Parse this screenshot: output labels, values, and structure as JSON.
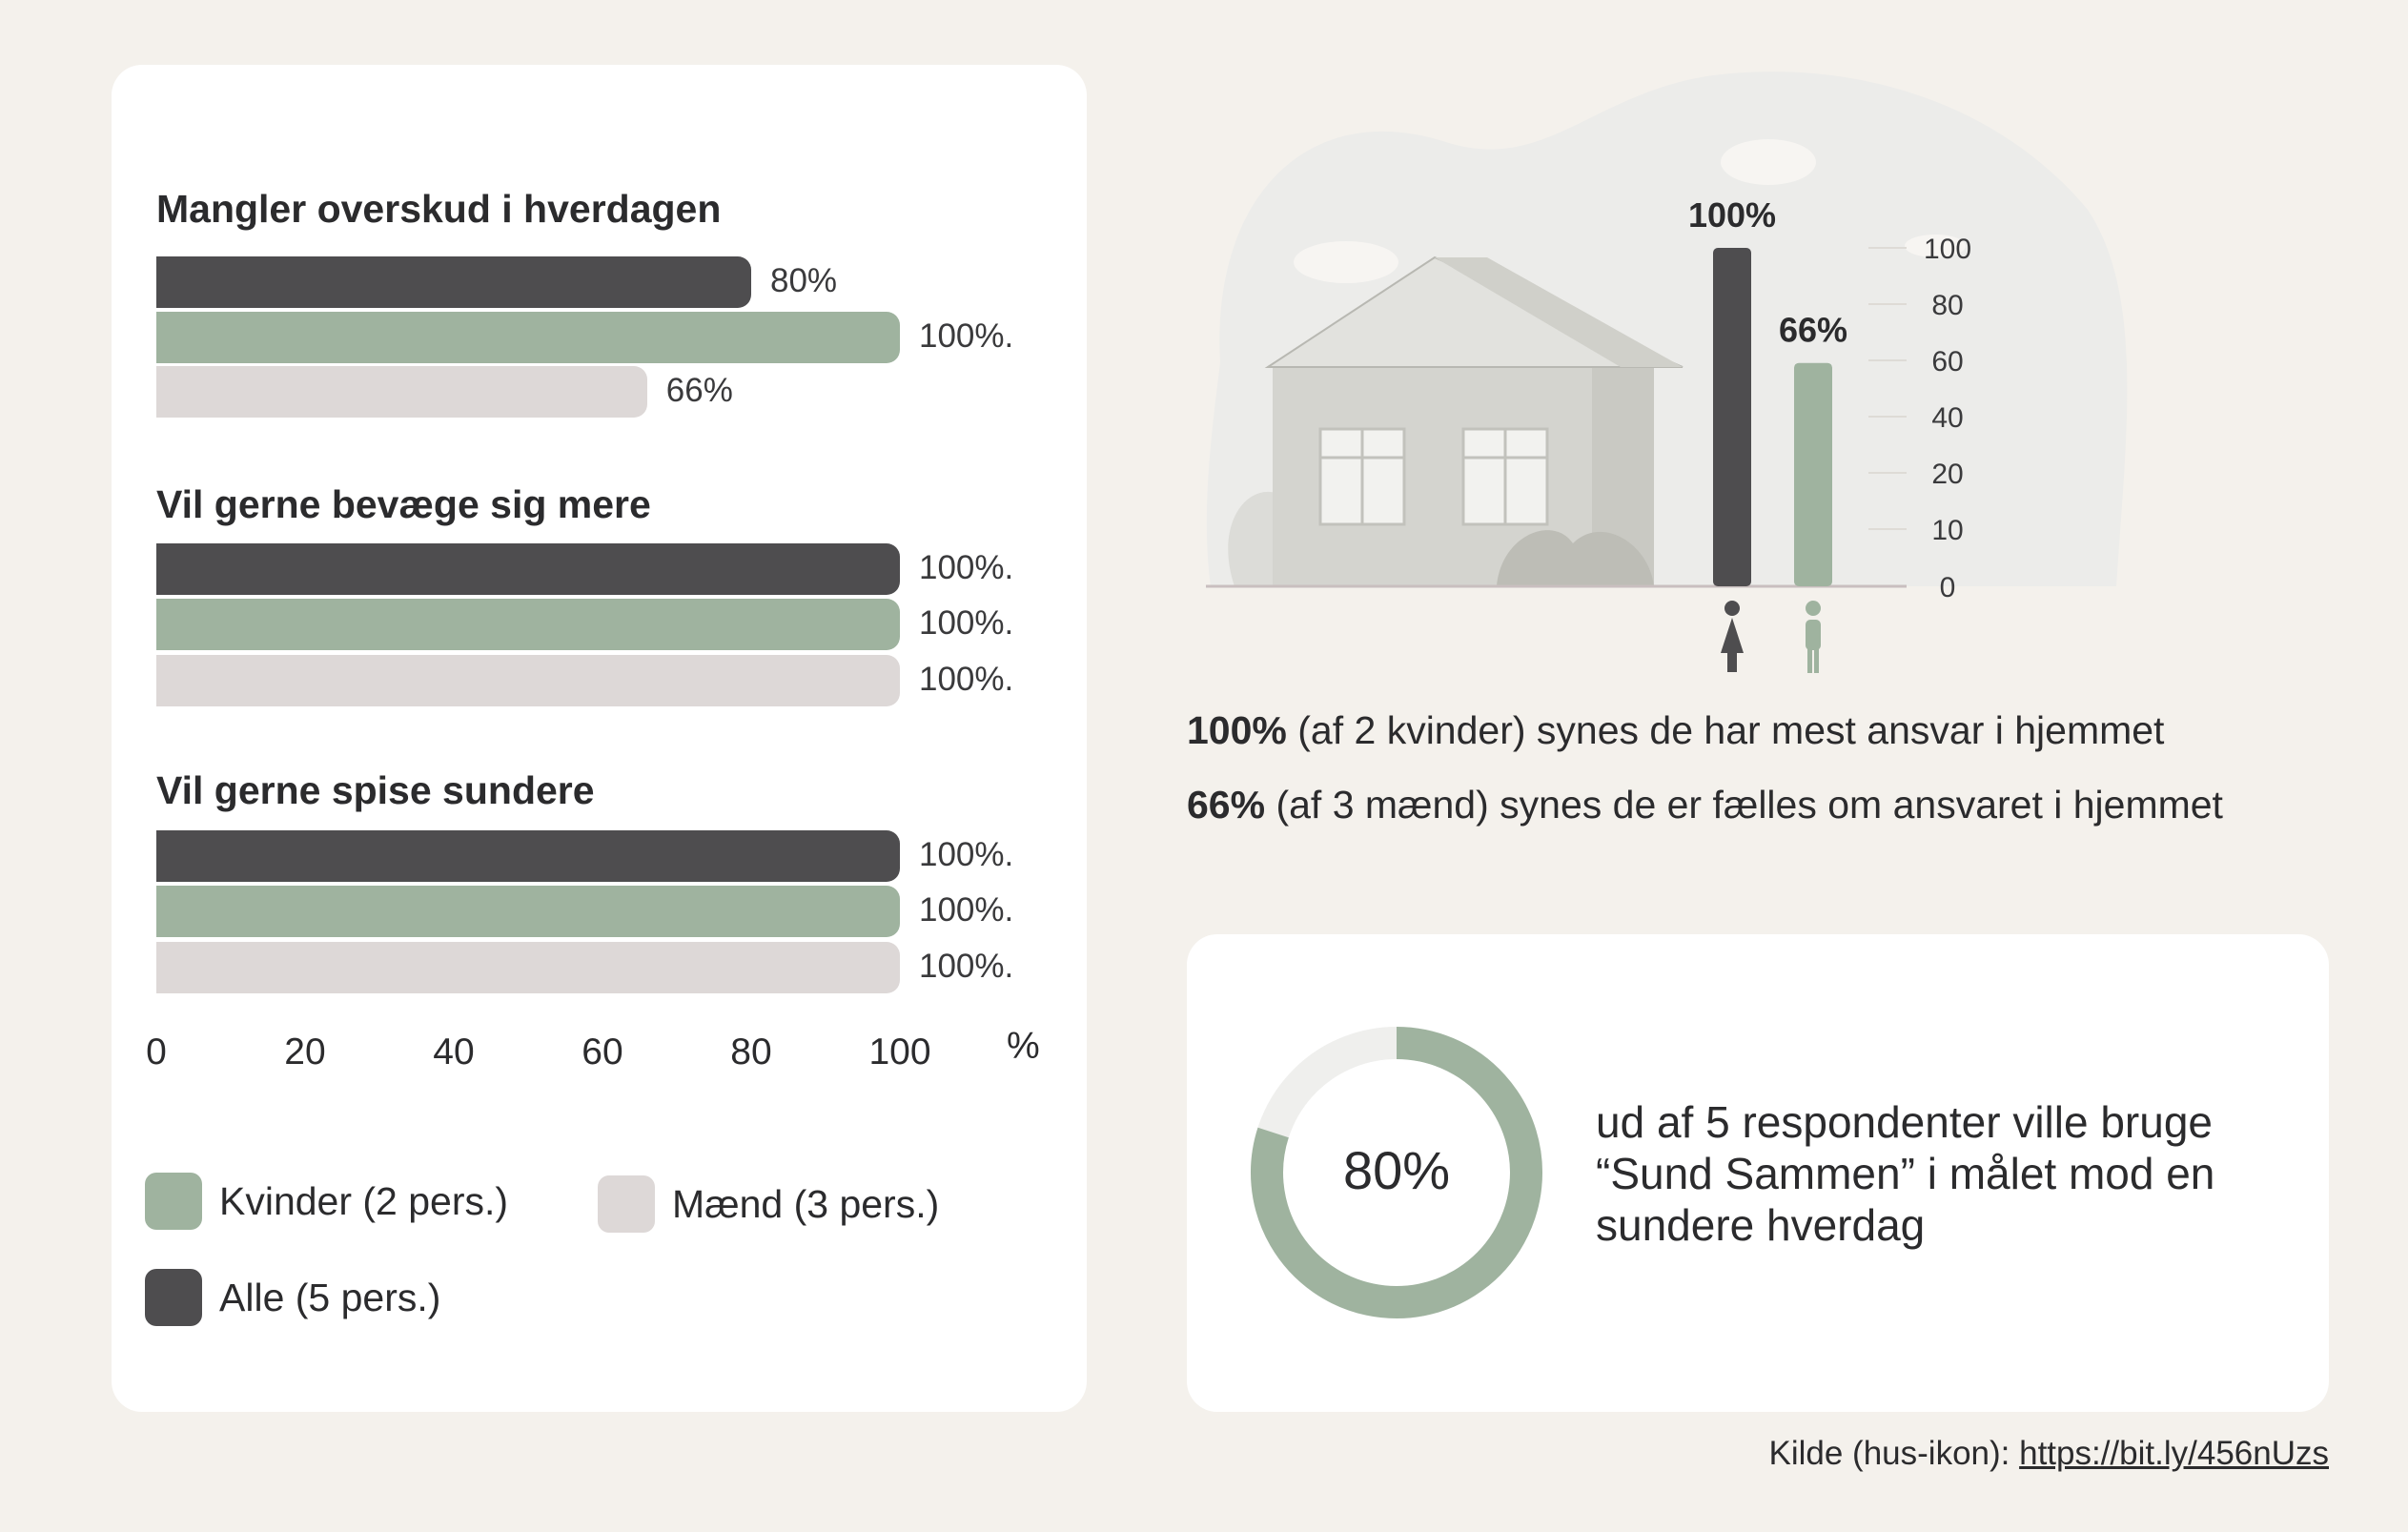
{
  "colors": {
    "alle": "#4e4d4f",
    "kvinder": "#9fb39f",
    "maend": "#ddd8d7",
    "background": "#f4f1ec",
    "card": "#ffffff"
  },
  "chart_data": [
    {
      "type": "bar",
      "orientation": "horizontal",
      "groups": [
        "Mangler overskud i hverdagen",
        "Vil gerne bevæge sig mere",
        "Vil gerne spise sundere"
      ],
      "series": [
        {
          "name": "Alle (5 pers.)",
          "values": [
            80,
            100,
            100
          ],
          "labels": [
            "80%",
            "100%.",
            "100%."
          ]
        },
        {
          "name": "Kvinder (2 pers.)",
          "values": [
            100,
            100,
            100
          ],
          "labels": [
            "100%.",
            "100%.",
            "100%."
          ]
        },
        {
          "name": "Mænd (3 pers.)",
          "values": [
            66,
            100,
            100
          ],
          "labels": [
            "66%",
            "100%.",
            "100%."
          ]
        }
      ],
      "xticks": [
        "0",
        "20",
        "40",
        "60",
        "80",
        "100"
      ],
      "xunit": "%",
      "xlim": [
        0,
        100
      ]
    },
    {
      "type": "bar",
      "orientation": "vertical",
      "categories": [
        "kvinder-icon",
        "mand-icon"
      ],
      "values": [
        100,
        66
      ],
      "labels": [
        "100%",
        "66%"
      ],
      "yticks": [
        "100",
        "80",
        "60",
        "40",
        "20",
        "10",
        "0"
      ],
      "ylim": [
        0,
        100
      ]
    },
    {
      "type": "pie",
      "style": "donut",
      "values": [
        80,
        20
      ],
      "center_label": "80%"
    }
  ],
  "legend": [
    {
      "label": "Kvinder (2 pers.)",
      "color_key": "kvinder"
    },
    {
      "label": "Mænd (3 pers.)",
      "color_key": "maend"
    },
    {
      "label": "Alle (5 pers.)",
      "color_key": "alle"
    }
  ],
  "statements": [
    {
      "bold": "100%",
      "text": " (af 2 kvinder) synes de har mest ansvar i hjemmet"
    },
    {
      "bold": "66%",
      "text": " (af 3 mænd) synes de er fælles om ansvaret i hjemmet"
    }
  ],
  "donut_text": "ud af 5 respondenter ville bruge “Sund Sammen” i målet mod en sundere hverdag",
  "source": {
    "prefix": "Kilde (hus-ikon): ",
    "link": "https://bit.ly/456nUzs"
  }
}
